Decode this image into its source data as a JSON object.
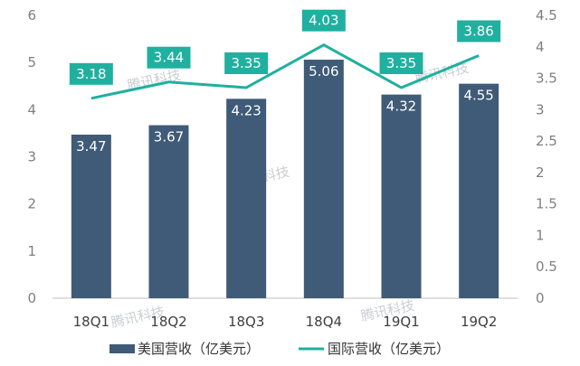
{
  "chart_data": {
    "type": "bar+line",
    "categories": [
      "18Q1",
      "18Q2",
      "18Q3",
      "18Q4",
      "19Q1",
      "19Q2"
    ],
    "series": [
      {
        "name": "美国营收（亿美元）",
        "type": "bar",
        "axis": "left",
        "values": [
          3.47,
          3.67,
          4.23,
          5.06,
          4.32,
          4.55
        ],
        "labels": [
          "3.47",
          "3.67",
          "4.23",
          "5.06",
          "4.32",
          "4.55"
        ]
      },
      {
        "name": "国际营收（亿美元）",
        "type": "line",
        "axis": "right",
        "values": [
          3.18,
          3.44,
          3.35,
          4.03,
          3.35,
          3.86
        ],
        "labels": [
          "3.18",
          "3.44",
          "3.35",
          "4.03",
          "3.35",
          "3.86"
        ]
      }
    ],
    "left_axis": {
      "ylim": [
        0,
        6
      ],
      "ticks": [
        0,
        1,
        2,
        3,
        4,
        5,
        6
      ],
      "tick_labels": [
        "0",
        "1",
        "2",
        "3",
        "4",
        "5",
        "6"
      ]
    },
    "right_axis": {
      "ylim": [
        0,
        4.5
      ],
      "ticks": [
        0,
        0.5,
        1,
        1.5,
        2,
        2.5,
        3,
        3.5,
        4,
        4.5
      ],
      "tick_labels": [
        "0",
        "0.5",
        "1",
        "1.5",
        "2",
        "2.5",
        "3",
        "3.5",
        "4",
        "4.5"
      ]
    },
    "legend_position": "bottom",
    "grid": false,
    "watermark": "腾讯科技"
  },
  "colors": {
    "bar": "#3f5b77",
    "line": "#1fb0a0",
    "axis": "#bfbfbf"
  }
}
